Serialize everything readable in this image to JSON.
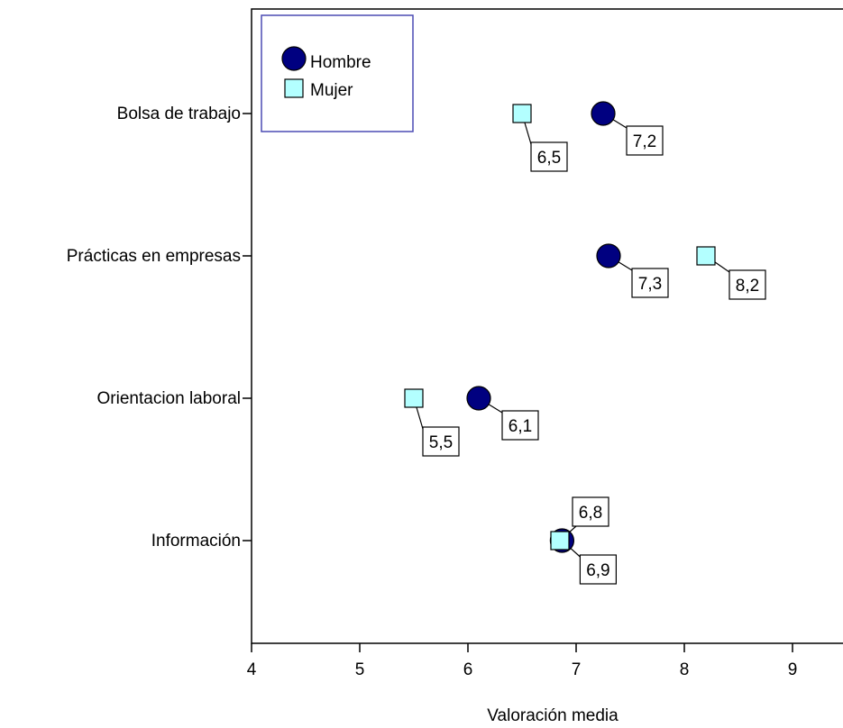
{
  "chart_data": {
    "type": "scatter",
    "title": "",
    "xlabel": "Valoración media",
    "ylabel": "",
    "xlim": [
      4,
      9.5
    ],
    "xticks": [
      4,
      5,
      6,
      7,
      8,
      9
    ],
    "grid": false,
    "legend_position": "top-left",
    "categories": [
      "Bolsa de trabajo",
      "Prácticas en empresas",
      "Orientacion laboral",
      "Información"
    ],
    "series": [
      {
        "name": "Hombre",
        "marker": "circle",
        "color": "#000080",
        "values": [
          7.25,
          7.3,
          6.1,
          6.87
        ],
        "labels": [
          "7,2",
          "7,3",
          "6,1",
          "6,9"
        ]
      },
      {
        "name": "Mujer",
        "marker": "square",
        "color": "#b3ffff",
        "values": [
          6.5,
          8.2,
          5.5,
          6.85
        ],
        "labels": [
          "6,5",
          "8,2",
          "5,5",
          "6,8"
        ]
      }
    ]
  }
}
